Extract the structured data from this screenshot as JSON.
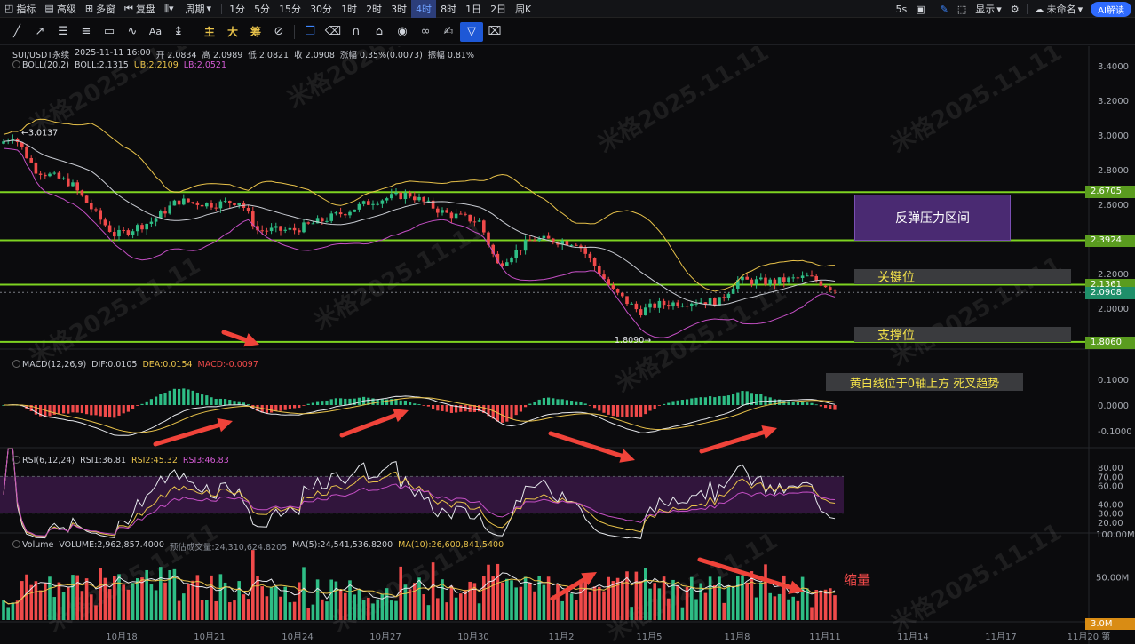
{
  "toolbar": {
    "items": [
      {
        "label": "指标",
        "icon": "indicator-icon"
      },
      {
        "label": "高级",
        "icon": "advanced-icon"
      },
      {
        "label": "多窗",
        "icon": "multi-window-icon"
      },
      {
        "label": "复盘",
        "icon": "replay-icon"
      },
      {
        "label": "",
        "icon": "chart-type-icon"
      },
      {
        "label": "周期",
        "icon": "period-icon"
      }
    ],
    "intervals": [
      "1分",
      "5分",
      "15分",
      "30分",
      "1时",
      "2时",
      "3时",
      "4时",
      "8时",
      "1日",
      "2日",
      "周K"
    ],
    "active_interval": "4时",
    "right": {
      "refresh": "5s",
      "display": "显示",
      "unnamed": "未命名",
      "ai": "AI解读"
    }
  },
  "drawing_tools": {
    "zh_buttons": [
      "主",
      "大",
      "筹"
    ]
  },
  "legend": {
    "symbol": "SUI/USDT永续",
    "time": "2025-11-11 16:00",
    "open_label": "开",
    "open": "2.0834",
    "high_label": "高",
    "high": "2.0989",
    "low_label": "低",
    "low": "2.0821",
    "close_label": "收",
    "close": "2.0908",
    "change_label": "涨幅",
    "change": "0.35%(0.0073)",
    "amp_label": "振幅",
    "amp": "0.81%",
    "boll_name": "BOLL(20,2)",
    "boll": "BOLL:2.1315",
    "ub": "UB:2.2109",
    "lb": "LB:2.0521"
  },
  "price_axis": [
    "3.4000",
    "3.2000",
    "3.0000",
    "2.8000",
    "2.6000",
    "2.4000",
    "2.2000",
    "2.0000"
  ],
  "price_tags": {
    "upper": "2.6705",
    "mid": "2.3924",
    "key": "2.1361",
    "current": "2.0908",
    "support": "1.8060"
  },
  "chart_marks": {
    "high": "3.0137",
    "low": "1.8090"
  },
  "annotations": {
    "resistance": "反弹压力区间",
    "key_level": "关键位",
    "support": "支撑位",
    "macd_note": "黄白线位于0轴上方 死叉趋势",
    "volume_note": "缩量"
  },
  "macd": {
    "name": "MACD(12,26,9)",
    "dif": "DIF:0.0105",
    "dea": "DEA:0.0154",
    "macd": "MACD:-0.0097",
    "axis": [
      "0.1000",
      "0.0000",
      "-0.1000"
    ]
  },
  "rsi": {
    "name": "RSI(6,12,24)",
    "rsi1": "RSI1:36.81",
    "rsi2": "RSI2:45.32",
    "rsi3": "RSI3:46.83",
    "axis": [
      "80.00",
      "70.00",
      "60.00",
      "40.00",
      "30.00",
      "20.00"
    ]
  },
  "volume": {
    "name": "Volume",
    "value": "VOLUME:2,962,857.4000",
    "predicted": "预估成交量:24,310,624.8205",
    "ma5": "MA(5):24,541,536.8200",
    "ma10": "MA(10):26,600,841.5400",
    "axis": [
      "100.00M",
      "50.00M"
    ],
    "tag": "3.0M"
  },
  "x_axis": [
    "10月18",
    "10月21",
    "10月24",
    "10月27",
    "10月30",
    "11月2",
    "11月5",
    "11月8",
    "11月11",
    "11月14",
    "11月17",
    "11月20 第"
  ],
  "watermark": "米格2025.11.11",
  "colors": {
    "up": "#2ebd85",
    "down": "#f04a4a",
    "level": "#7ed321",
    "boll_mid": "#c9ccd3",
    "boll_ub": "#e8c24a",
    "boll_lb": "#c44fc4",
    "arrow": "#f0433a",
    "accent": "#2f6bff"
  }
}
